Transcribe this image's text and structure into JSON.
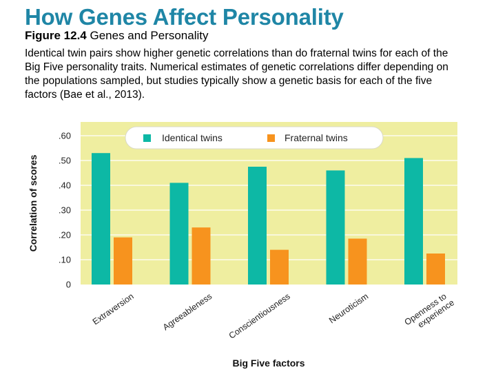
{
  "slide": {
    "title": "How Genes Affect Personality",
    "figure_number": "Figure 12.4",
    "figure_title": "Genes and Personality",
    "caption": "Identical twin pairs show higher genetic correlations than do fraternal twins for each of the Big Five personality traits. Numerical estimates of genetic correlations differ depending on the populations sampled, but studies typically show a genetic basis for each of the five factors (Bae et al., 2013)."
  },
  "chart_data": {
    "type": "bar",
    "title": "",
    "xlabel": "Big Five factors",
    "ylabel": "Correlation of scores",
    "categories": [
      [
        "Extraversion"
      ],
      [
        "Agreeableness"
      ],
      [
        "Conscientiousness"
      ],
      [
        "Neuroticism"
      ],
      [
        "Openness to",
        "experience"
      ]
    ],
    "series": [
      {
        "name": "Identical twins",
        "color": "#0db8a5",
        "values": [
          0.53,
          0.41,
          0.475,
          0.46,
          0.51
        ]
      },
      {
        "name": "Fraternal twins",
        "color": "#f7931e",
        "values": [
          0.19,
          0.23,
          0.14,
          0.185,
          0.125
        ]
      }
    ],
    "yticks": [
      {
        "value": 0,
        "label": "0"
      },
      {
        "value": 0.1,
        "label": ".10"
      },
      {
        "value": 0.2,
        "label": ".20"
      },
      {
        "value": 0.3,
        "label": ".30"
      },
      {
        "value": 0.4,
        "label": ".40"
      },
      {
        "value": 0.5,
        "label": ".50"
      },
      {
        "value": 0.6,
        "label": ".60"
      }
    ],
    "ylim": [
      0,
      0.6
    ],
    "grid": true,
    "legend_position": "top-center",
    "background_color": "#efeea0"
  }
}
